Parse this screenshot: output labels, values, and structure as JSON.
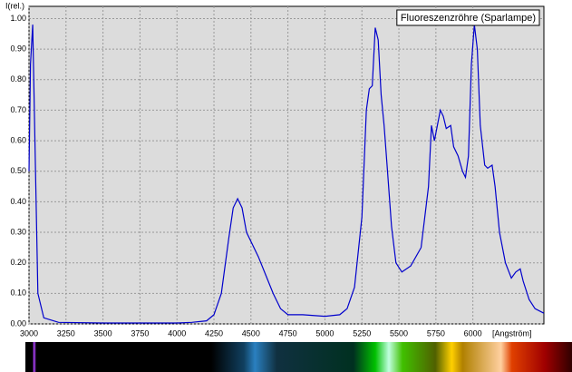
{
  "chart_data": {
    "type": "line",
    "y_label": "I(rel.)",
    "x_label": "[Angström]",
    "legend": "upper right",
    "grid": true,
    "xlim": [
      3000,
      6480
    ],
    "ylim": [
      0,
      1.04
    ],
    "xticks": [
      3000,
      3250,
      3500,
      3750,
      4000,
      4250,
      4500,
      4750,
      5000,
      5250,
      5500,
      5750,
      6000
    ],
    "yticks": [
      {
        "value": 0,
        "label": "0.00"
      },
      {
        "value": 0.1,
        "label": "0.10"
      },
      {
        "value": 0.2,
        "label": "0.20"
      },
      {
        "value": 0.3,
        "label": "0.30"
      },
      {
        "value": 0.4,
        "label": "0.40"
      },
      {
        "value": 0.5,
        "label": "0.50"
      },
      {
        "value": 0.6,
        "label": "0.60"
      },
      {
        "value": 0.7,
        "label": "0.70"
      },
      {
        "value": 0.8,
        "label": "0.80"
      },
      {
        "value": 0.9,
        "label": "0.90"
      },
      {
        "value": 1,
        "label": "1.00"
      }
    ],
    "x": [
      3000,
      3010,
      3025,
      3040,
      3060,
      3100,
      3200,
      3500,
      4000,
      4100,
      4200,
      4250,
      4300,
      4350,
      4380,
      4410,
      4440,
      4470,
      4500,
      4550,
      4600,
      4650,
      4700,
      4750,
      4850,
      5000,
      5100,
      5150,
      5200,
      5250,
      5280,
      5300,
      5320,
      5340,
      5360,
      5380,
      5400,
      5420,
      5450,
      5480,
      5520,
      5580,
      5650,
      5700,
      5720,
      5740,
      5760,
      5780,
      5800,
      5820,
      5850,
      5870,
      5900,
      5930,
      5950,
      5970,
      5990,
      6010,
      6030,
      6050,
      6080,
      6100,
      6130,
      6150,
      6180,
      6220,
      6260,
      6290,
      6320,
      6340,
      6380,
      6420,
      6460,
      6480
    ],
    "series": [
      {
        "name": "Fluoreszenzröhre (Sparlampe)",
        "color": "#0000cc",
        "values": [
          0.5,
          0.85,
          0.98,
          0.6,
          0.1,
          0.02,
          0.005,
          0.003,
          0.003,
          0.005,
          0.01,
          0.03,
          0.1,
          0.28,
          0.38,
          0.41,
          0.38,
          0.3,
          0.27,
          0.22,
          0.16,
          0.1,
          0.05,
          0.03,
          0.03,
          0.025,
          0.03,
          0.05,
          0.12,
          0.35,
          0.7,
          0.77,
          0.78,
          0.97,
          0.93,
          0.75,
          0.65,
          0.52,
          0.32,
          0.2,
          0.17,
          0.19,
          0.25,
          0.45,
          0.65,
          0.6,
          0.65,
          0.7,
          0.68,
          0.64,
          0.65,
          0.58,
          0.55,
          0.5,
          0.48,
          0.55,
          0.85,
          0.98,
          0.9,
          0.65,
          0.52,
          0.51,
          0.52,
          0.45,
          0.3,
          0.2,
          0.15,
          0.17,
          0.18,
          0.14,
          0.08,
          0.05,
          0.04,
          0.035
        ]
      }
    ]
  }
}
